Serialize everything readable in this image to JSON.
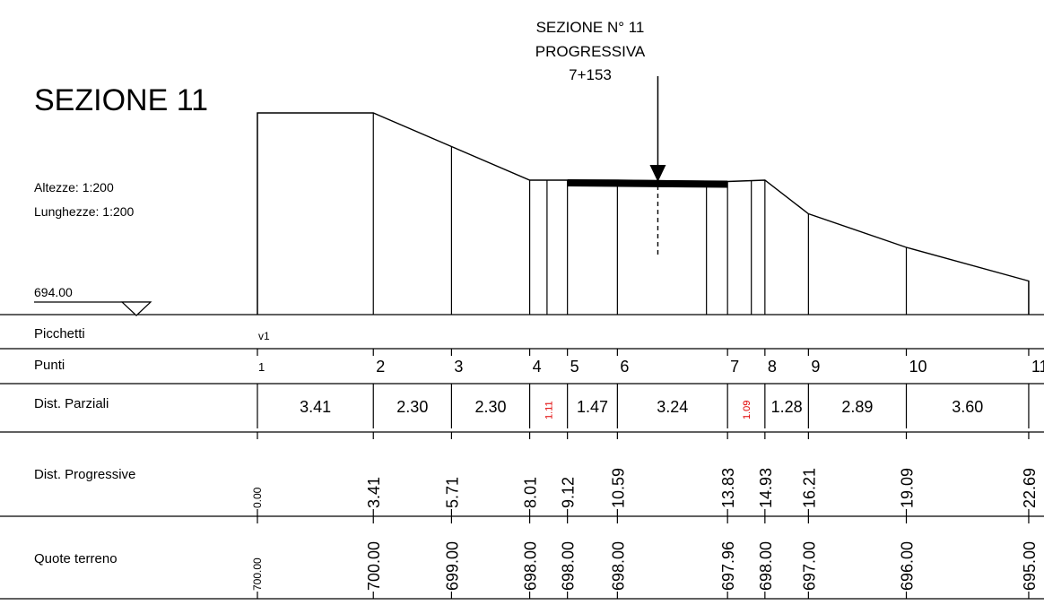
{
  "title": "SEZIONE 11",
  "scale": {
    "heights": "Altezze:  1:200",
    "lengths": "Lunghezze: 1:200"
  },
  "reference_level": "694.00",
  "section_label": {
    "line1": "SEZIONE N° 11",
    "line2": "PROGRESSIVA",
    "line3": "7+153"
  },
  "table": {
    "rows": {
      "picchetti": "Picchetti",
      "punti": "Punti",
      "dist_parziali": "Dist. Parziali",
      "dist_progressive": "Dist. Progressive",
      "quote_terreno": "Quote terreno"
    }
  },
  "picchetti": [
    {
      "label": "v1",
      "at_point": "1"
    }
  ],
  "points": [
    {
      "id": "1",
      "progressive": "0.00",
      "elevation": "700.00",
      "dist": 0.0
    },
    {
      "id": "2",
      "progressive": "3.41",
      "elevation": "700.00",
      "dist": 3.41
    },
    {
      "id": "3",
      "progressive": "5.71",
      "elevation": "699.00",
      "dist": 5.71
    },
    {
      "id": "4",
      "progressive": "8.01",
      "elevation": "698.00",
      "dist": 8.01
    },
    {
      "id": "5",
      "progressive": "9.12",
      "elevation": "698.00",
      "dist": 9.12
    },
    {
      "id": "6",
      "progressive": "10.59",
      "elevation": "698.00",
      "dist": 10.59
    },
    {
      "id": "7",
      "progressive": "13.83",
      "elevation": "697.96",
      "dist": 13.83
    },
    {
      "id": "8",
      "progressive": "14.93",
      "elevation": "698.00",
      "dist": 14.93
    },
    {
      "id": "9",
      "progressive": "16.21",
      "elevation": "697.00",
      "dist": 16.21
    },
    {
      "id": "10",
      "progressive": "19.09",
      "elevation": "696.00",
      "dist": 19.09
    },
    {
      "id": "11",
      "progressive": "22.69",
      "elevation": "695.00",
      "dist": 22.69
    }
  ],
  "partial_distances": [
    {
      "value": "3.41",
      "small": false
    },
    {
      "value": "2.30",
      "small": false
    },
    {
      "value": "2.30",
      "small": false
    },
    {
      "value": "1.11",
      "small": true
    },
    {
      "value": "1.47",
      "small": false
    },
    {
      "value": "3.24",
      "small": false
    },
    {
      "value": "1.09",
      "small": true
    },
    {
      "value": "1.28",
      "small": false
    },
    {
      "value": "2.89",
      "small": false
    },
    {
      "value": "3.60",
      "small": false
    }
  ],
  "extra_verticals": [
    8.52,
    13.21,
    14.53
  ],
  "road": {
    "from": 9.12,
    "to": 13.83
  },
  "axis_dist": 11.78,
  "colors": {
    "line": "#000000",
    "small_text": "#e00000"
  }
}
